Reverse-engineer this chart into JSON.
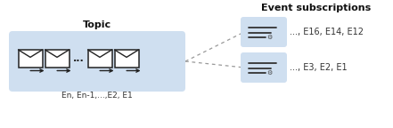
{
  "bg_color": "#ffffff",
  "topic_box_color": "#cfdff0",
  "topic_label": "Topic",
  "topic_sublabel": "En, En-1,...,E2, E1",
  "event_title": "Event subscriptions",
  "sub_box_color": "#cfdff0",
  "sub1_label": "..., E3, E2, E1",
  "sub2_label": "..., E16, E14, E12",
  "line_color": "#999999",
  "icon_edge_color": "#222222",
  "icon_face_color": "#ffffff",
  "text_color": "#333333",
  "title_color": "#111111"
}
